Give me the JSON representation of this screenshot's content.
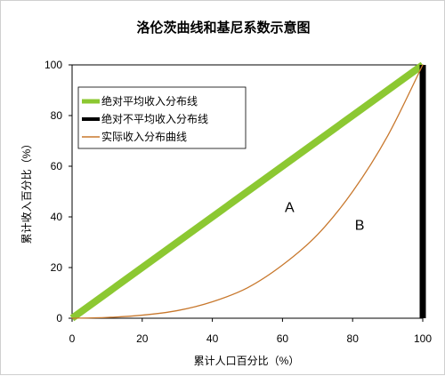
{
  "chart_data": {
    "type": "line",
    "title": "洛伦茨曲线和基尼系数示意图",
    "xlabel": "累计人口百分比（%）",
    "ylabel": "累计收入百分比（%）",
    "xlim": [
      0,
      100
    ],
    "ylim": [
      0,
      100
    ],
    "x_ticks": [
      0,
      20,
      40,
      60,
      80,
      100
    ],
    "y_ticks": [
      0,
      20,
      40,
      60,
      80,
      100
    ],
    "grid": false,
    "legend_position": "top-left",
    "series": [
      {
        "name": "绝对平均收入分布线",
        "color": "#8CC832",
        "x": [
          0,
          100
        ],
        "y": [
          0,
          100
        ]
      },
      {
        "name": "绝对不平均收入分布线",
        "color": "#000000",
        "x": [
          100,
          100
        ],
        "y": [
          0,
          100
        ]
      },
      {
        "name": "实际收入分布曲线",
        "color": "#C8782D",
        "x": [
          0,
          10,
          20,
          30,
          40,
          50,
          60,
          70,
          80,
          90,
          100
        ],
        "y": [
          0,
          0.3,
          1.2,
          3,
          6.5,
          12,
          21,
          33,
          50,
          72,
          100
        ]
      }
    ],
    "annotations": [
      {
        "text": "A",
        "x": 62,
        "y": 42
      },
      {
        "text": "B",
        "x": 82,
        "y": 35
      }
    ]
  }
}
